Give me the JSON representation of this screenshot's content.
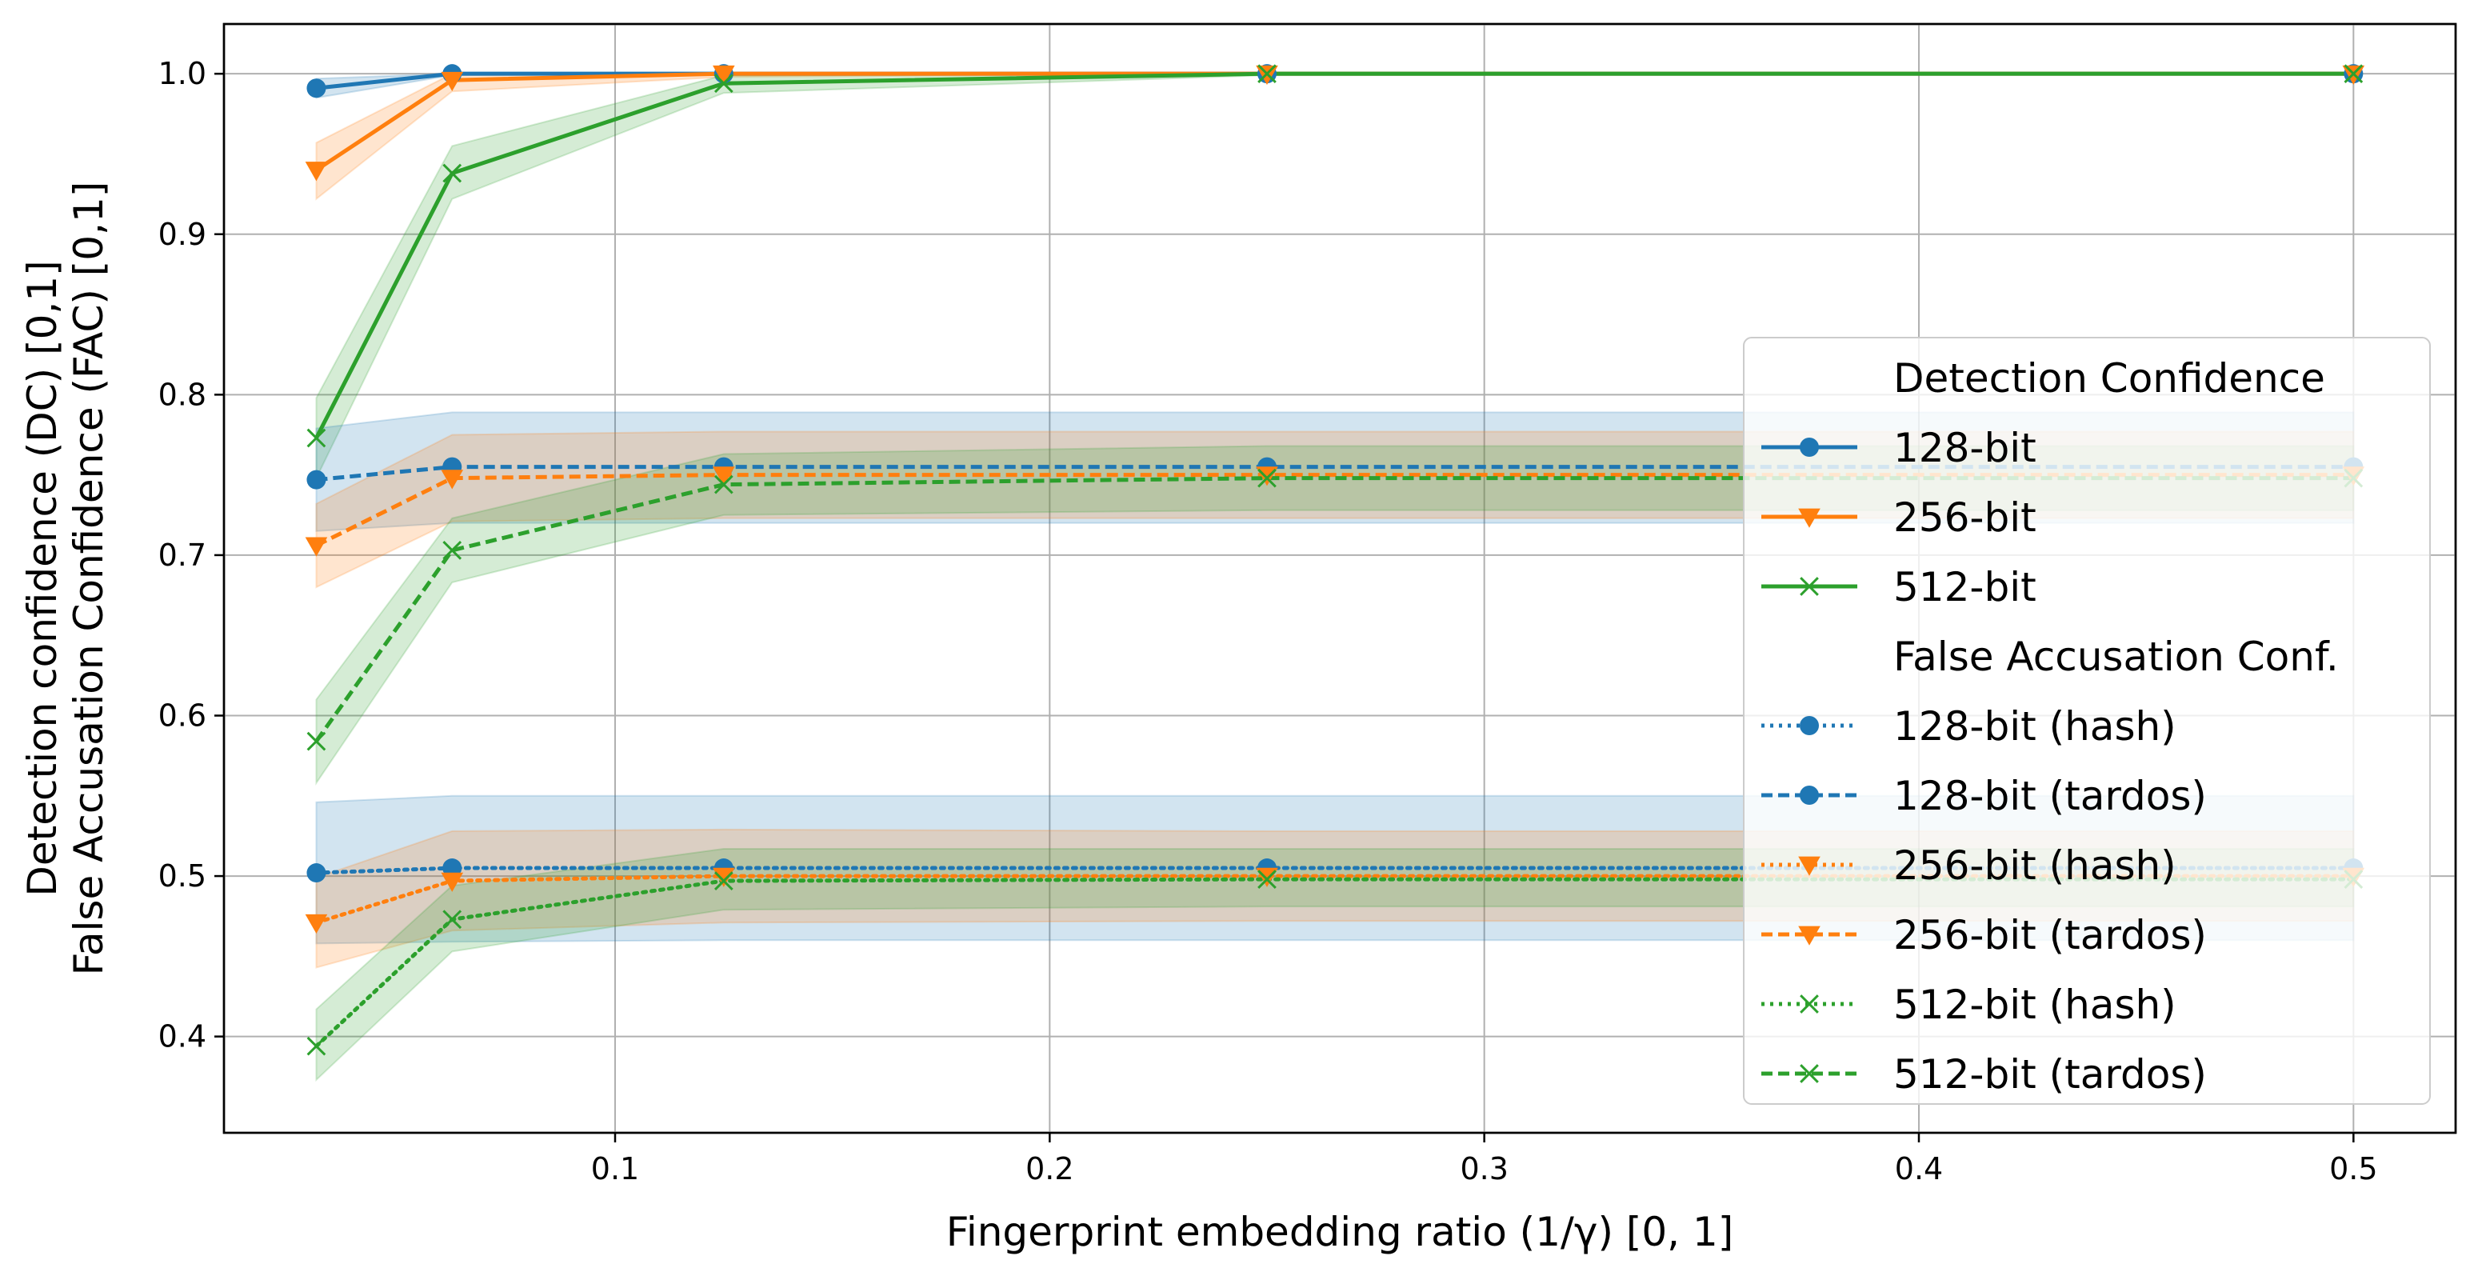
{
  "chart_data": {
    "type": "line",
    "xlabel": "Fingerprint embedding ratio (1/γ) [0, 1]",
    "ylabel_line1": "Detection confidence (DC) [0,1]",
    "ylabel_line2": "False Accusation Confidence (FAC) [0,1]",
    "xlim": [
      0.01,
      0.5235
    ],
    "ylim": [
      0.34,
      1.031
    ],
    "x_ticks": [
      0.1,
      0.2,
      0.3,
      0.4,
      0.5
    ],
    "x_tick_labels": [
      "0.1",
      "0.2",
      "0.3",
      "0.4",
      "0.5"
    ],
    "y_ticks": [
      0.4,
      0.5,
      0.6,
      0.7,
      0.8,
      0.9,
      1.0
    ],
    "y_tick_labels": [
      "0.4",
      "0.5",
      "0.6",
      "0.7",
      "0.8",
      "0.9",
      "1.0"
    ],
    "grid": true,
    "legend_position": "lower right",
    "x": [
      0.03125,
      0.0625,
      0.125,
      0.25,
      0.5
    ],
    "legend": {
      "heading_dc": "Detection Confidence",
      "heading_fac": "False Accusation Conf."
    },
    "series": [
      {
        "name": "128-bit",
        "group": "dc",
        "color": "#1f77b4",
        "marker": "circle",
        "linestyle": "solid",
        "values": [
          0.991,
          1.0,
          1.0,
          1.0,
          1.0
        ],
        "band": [
          0.985,
          0.997,
          0.999,
          1.0,
          1.0,
          1.0,
          1.0,
          1.0,
          1.0,
          1.0
        ]
      },
      {
        "name": "256-bit",
        "group": "dc",
        "color": "#ff7f0e",
        "marker": "triangle",
        "linestyle": "solid",
        "values": [
          0.94,
          0.996,
          1.0,
          1.0,
          1.0
        ],
        "band": [
          0.922,
          0.957,
          0.989,
          1.0,
          0.998,
          1.0,
          1.0,
          1.0,
          1.0,
          1.0
        ]
      },
      {
        "name": "512-bit",
        "group": "dc",
        "color": "#2ca02c",
        "marker": "x",
        "linestyle": "solid",
        "values": [
          0.773,
          0.938,
          0.994,
          1.0,
          1.0
        ],
        "band": [
          0.748,
          0.798,
          0.922,
          0.955,
          0.988,
          0.999,
          0.999,
          1.0,
          1.0,
          1.0
        ]
      },
      {
        "name": "128-bit (hash)",
        "group": "fac",
        "color": "#1f77b4",
        "marker": "circle",
        "linestyle": "dotted",
        "values": [
          0.502,
          0.505,
          0.505,
          0.505,
          0.505
        ],
        "band": [
          0.458,
          0.546,
          0.459,
          0.55,
          0.46,
          0.55,
          0.46,
          0.55,
          0.46,
          0.55
        ]
      },
      {
        "name": "128-bit (tardos)",
        "group": "fac",
        "color": "#1f77b4",
        "marker": "circle",
        "linestyle": "dashed",
        "values": [
          0.747,
          0.755,
          0.755,
          0.755,
          0.755
        ],
        "band": [
          0.715,
          0.779,
          0.72,
          0.789,
          0.72,
          0.789,
          0.72,
          0.789,
          0.72,
          0.789
        ]
      },
      {
        "name": "256-bit (hash)",
        "group": "fac",
        "color": "#ff7f0e",
        "marker": "triangle",
        "linestyle": "dotted",
        "values": [
          0.471,
          0.497,
          0.5,
          0.5,
          0.5
        ],
        "band": [
          0.443,
          0.499,
          0.466,
          0.528,
          0.471,
          0.529,
          0.472,
          0.528,
          0.472,
          0.528
        ]
      },
      {
        "name": "256-bit (tardos)",
        "group": "fac",
        "color": "#ff7f0e",
        "marker": "triangle",
        "linestyle": "dashed",
        "values": [
          0.706,
          0.748,
          0.75,
          0.75,
          0.75
        ],
        "band": [
          0.68,
          0.732,
          0.721,
          0.775,
          0.723,
          0.777,
          0.723,
          0.777,
          0.723,
          0.777
        ]
      },
      {
        "name": "512-bit (hash)",
        "group": "fac",
        "color": "#2ca02c",
        "marker": "x",
        "linestyle": "dotted",
        "values": [
          0.394,
          0.473,
          0.497,
          0.498,
          0.498
        ],
        "band": [
          0.373,
          0.417,
          0.453,
          0.494,
          0.479,
          0.517,
          0.481,
          0.517,
          0.481,
          0.517
        ]
      },
      {
        "name": "512-bit (tardos)",
        "group": "fac",
        "color": "#2ca02c",
        "marker": "x",
        "linestyle": "dashed",
        "values": [
          0.584,
          0.703,
          0.744,
          0.748,
          0.748
        ],
        "band": [
          0.558,
          0.61,
          0.683,
          0.723,
          0.725,
          0.763,
          0.728,
          0.768,
          0.728,
          0.768
        ]
      }
    ]
  }
}
